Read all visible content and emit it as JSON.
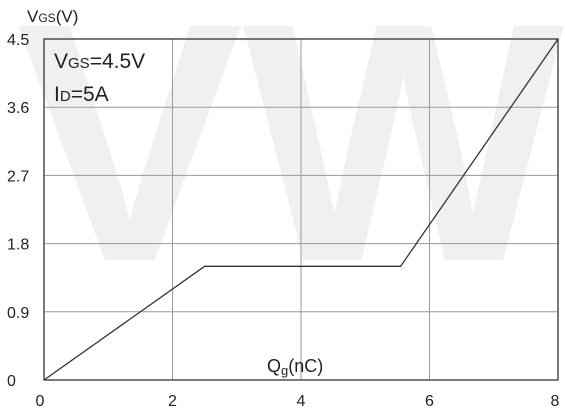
{
  "chart_data": {
    "type": "line",
    "title": "",
    "xlabel": "Qg(nC)",
    "xlabel_main": "Q",
    "xlabel_sub": "g",
    "xlabel_rest": "(nC)",
    "ylabel": "VGS(V)",
    "ylabel_main": "V",
    "ylabel_sub": "GS",
    "ylabel_rest": "(V)",
    "xlim": [
      0,
      8
    ],
    "ylim": [
      0,
      4.5
    ],
    "x_ticks": [
      0,
      2,
      4,
      6,
      8
    ],
    "x_tick_labels": [
      "0",
      "2",
      "4",
      "6",
      "8"
    ],
    "y_ticks": [
      0,
      0.9,
      1.8,
      2.7,
      3.6,
      4.5
    ],
    "y_tick_labels": [
      "0",
      "0.9",
      "1.8",
      "2.7",
      "3.6",
      "4.5"
    ],
    "grid": true,
    "series": [
      {
        "x": [
          0,
          2.5,
          5.55,
          8
        ],
        "y": [
          0,
          1.5,
          1.5,
          4.5
        ]
      }
    ],
    "annotations": [
      {
        "main": "V",
        "sub": "GS",
        "rest": "=4.5V",
        "text": "VGS=4.5V"
      },
      {
        "main": "I",
        "sub": "D",
        "rest": "=5A",
        "text": "ID=5A"
      }
    ],
    "watermark_text": "VW",
    "colors": {
      "line": "#333333",
      "grid": "#9a9a9a",
      "frame": "#333333",
      "watermark": "#f0f0f0"
    }
  }
}
